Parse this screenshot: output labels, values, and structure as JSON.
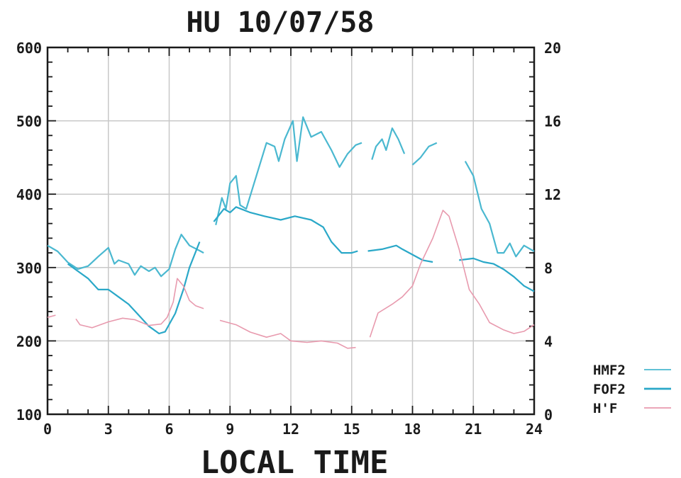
{
  "chart_data": {
    "type": "line",
    "title": "HU 10/07/58",
    "xlabel": "LOCAL TIME",
    "xlim": [
      0,
      24
    ],
    "ylim_left": [
      100,
      600
    ],
    "ylim_right": [
      0,
      20
    ],
    "x_ticks": [
      "0",
      "3",
      "6",
      "9",
      "12",
      "15",
      "18",
      "21",
      "24"
    ],
    "y_left_ticks": [
      "100",
      "200",
      "300",
      "400",
      "500",
      "600"
    ],
    "y_right_ticks": [
      "0",
      "4",
      "8",
      "12",
      "16",
      "20"
    ],
    "grid": true,
    "legend_position": "bottom-right",
    "series": [
      {
        "name": "HMF2",
        "axis": "left",
        "color": "#4ab8d0",
        "segments": [
          [
            [
              0,
              330
            ],
            [
              0.5,
              322
            ],
            [
              1,
              307
            ],
            [
              1.5,
              298
            ],
            [
              2,
              302
            ],
            [
              2.5,
              315
            ],
            [
              3,
              327
            ],
            [
              3.3,
              305
            ],
            [
              3.5,
              310
            ],
            [
              4,
              305
            ],
            [
              4.3,
              290
            ],
            [
              4.6,
              302
            ],
            [
              5,
              295
            ],
            [
              5.3,
              300
            ],
            [
              5.6,
              288
            ],
            [
              6,
              298
            ],
            [
              6.3,
              325
            ],
            [
              6.6,
              345
            ],
            [
              7,
              330
            ],
            [
              7.5,
              323
            ],
            [
              7.7,
              320
            ]
          ],
          [
            [
              8.3,
              358
            ],
            [
              8.6,
              395
            ],
            [
              8.8,
              380
            ],
            [
              9,
              415
            ],
            [
              9.3,
              425
            ],
            [
              9.5,
              385
            ],
            [
              9.8,
              380
            ],
            [
              10.3,
              425
            ],
            [
              10.8,
              470
            ],
            [
              11.2,
              465
            ],
            [
              11.4,
              445
            ],
            [
              11.7,
              475
            ],
            [
              12.1,
              500
            ],
            [
              12.3,
              445
            ],
            [
              12.6,
              505
            ],
            [
              13,
              478
            ],
            [
              13.5,
              485
            ],
            [
              14,
              460
            ],
            [
              14.4,
              437
            ],
            [
              14.8,
              455
            ],
            [
              15.2,
              467
            ],
            [
              15.5,
              470
            ]
          ],
          [
            [
              16,
              447
            ],
            [
              16.2,
              465
            ],
            [
              16.5,
              475
            ],
            [
              16.7,
              460
            ],
            [
              17,
              490
            ],
            [
              17.3,
              475
            ],
            [
              17.6,
              455
            ]
          ],
          [
            [
              18,
              440
            ],
            [
              18.4,
              450
            ],
            [
              18.8,
              465
            ],
            [
              19.2,
              470
            ]
          ],
          [
            [
              20.6,
              445
            ],
            [
              21,
              425
            ],
            [
              21.4,
              380
            ],
            [
              21.8,
              360
            ],
            [
              22.2,
              320
            ],
            [
              22.5,
              320
            ],
            [
              22.8,
              333
            ],
            [
              23.1,
              315
            ],
            [
              23.5,
              330
            ],
            [
              24,
              322
            ]
          ]
        ]
      },
      {
        "name": "FOF2",
        "axis": "right",
        "color": "#2aa8c8",
        "segments": [
          [
            [
              1,
              8.2
            ],
            [
              1.5,
              7.8
            ],
            [
              2,
              7.4
            ],
            [
              2.5,
              6.8
            ],
            [
              3,
              6.8
            ],
            [
              3.5,
              6.4
            ],
            [
              4,
              6.0
            ],
            [
              4.5,
              5.4
            ],
            [
              5,
              4.8
            ],
            [
              5.5,
              4.4
            ],
            [
              5.8,
              4.5
            ],
            [
              6.3,
              5.5
            ],
            [
              6.7,
              6.8
            ],
            [
              7,
              8
            ],
            [
              7.5,
              9.4
            ]
          ],
          [
            [
              8.2,
              10.5
            ],
            [
              8.7,
              11.2
            ],
            [
              9,
              11.0
            ],
            [
              9.3,
              11.3
            ],
            [
              10,
              11.0
            ],
            [
              10.7,
              10.8
            ],
            [
              11.5,
              10.6
            ],
            [
              12.2,
              10.8
            ],
            [
              13,
              10.6
            ],
            [
              13.6,
              10.2
            ],
            [
              14,
              9.4
            ],
            [
              14.5,
              8.8
            ],
            [
              15,
              8.8
            ],
            [
              15.3,
              8.9
            ]
          ],
          [
            [
              15.8,
              8.9
            ],
            [
              16.5,
              9.0
            ],
            [
              17.2,
              9.2
            ],
            [
              17.5,
              9.0
            ],
            [
              18.5,
              8.4
            ],
            [
              19,
              8.3
            ]
          ],
          [
            [
              20.3,
              8.4
            ],
            [
              21,
              8.5
            ],
            [
              21.5,
              8.3
            ],
            [
              22,
              8.2
            ],
            [
              22.5,
              7.9
            ],
            [
              23,
              7.5
            ],
            [
              23.5,
              7.0
            ],
            [
              24,
              6.7
            ]
          ]
        ]
      },
      {
        "name": "H'F",
        "axis": "left",
        "color": "#e89aae",
        "segments": [
          [
            [
              0,
              232
            ],
            [
              0.4,
              235
            ]
          ],
          [
            [
              1.4,
              230
            ],
            [
              1.6,
              222
            ],
            [
              2.2,
              218
            ],
            [
              3,
              226
            ],
            [
              3.7,
              231
            ],
            [
              4.3,
              229
            ],
            [
              5,
              221
            ],
            [
              5.6,
              223
            ],
            [
              5.9,
              232
            ],
            [
              6.2,
              253
            ],
            [
              6.4,
              285
            ],
            [
              6.7,
              275
            ],
            [
              7,
              255
            ],
            [
              7.3,
              248
            ],
            [
              7.7,
              244
            ]
          ],
          [
            [
              8.5,
              228
            ],
            [
              9.3,
              222
            ],
            [
              10,
              212
            ],
            [
              10.8,
              205
            ],
            [
              11.5,
              210
            ],
            [
              12,
              200
            ],
            [
              12.8,
              198
            ],
            [
              13.5,
              200
            ],
            [
              14.3,
              197
            ],
            [
              14.8,
              190
            ],
            [
              15.2,
              191
            ]
          ],
          [
            [
              15.9,
              205
            ],
            [
              16.3,
              238
            ],
            [
              17,
              250
            ],
            [
              17.5,
              260
            ],
            [
              18,
              275
            ],
            [
              18.4,
              305
            ],
            [
              19,
              340
            ],
            [
              19.5,
              378
            ],
            [
              19.8,
              370
            ],
            [
              20.3,
              325
            ],
            [
              20.8,
              270
            ],
            [
              21.3,
              250
            ],
            [
              21.8,
              225
            ],
            [
              22.5,
              215
            ],
            [
              23,
              210
            ],
            [
              23.5,
              213
            ],
            [
              24,
              222
            ]
          ]
        ]
      }
    ]
  }
}
